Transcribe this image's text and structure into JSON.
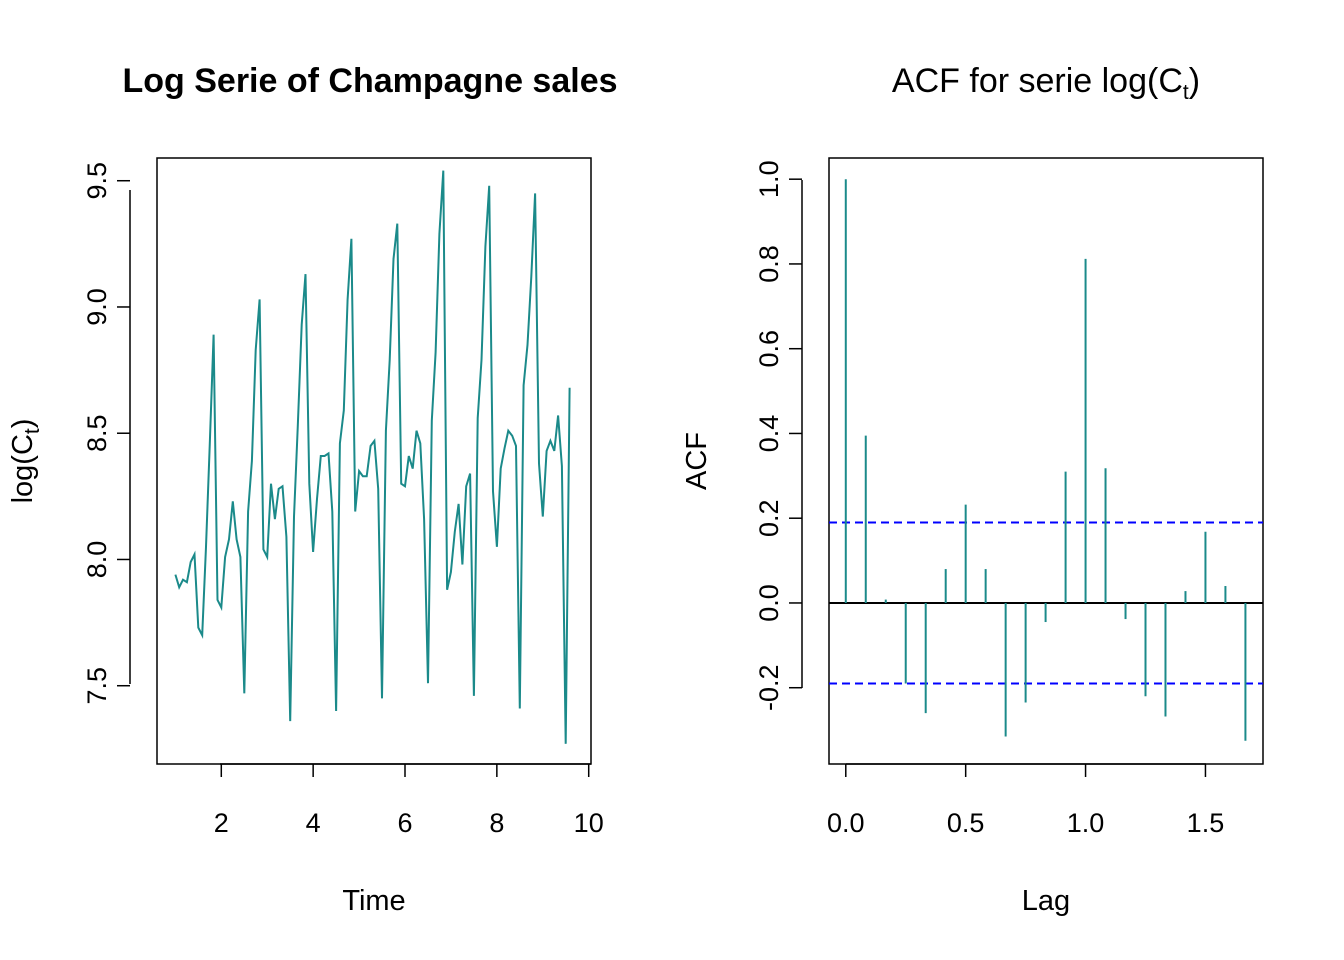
{
  "colors": {
    "series": "#1b8a8a",
    "ci": "#0000ff",
    "axis": "#000000",
    "background": "#ffffff"
  },
  "chart_data": [
    {
      "type": "line",
      "title": "Log Serie of Champagne sales",
      "xlabel": "Time",
      "ylabel": {
        "base": "log(C",
        "sub": "t",
        "close": ")"
      },
      "xlim": [
        0.6,
        10.05
      ],
      "ylim": [
        7.19,
        9.59
      ],
      "xticks": [
        2,
        4,
        6,
        8,
        10
      ],
      "yticks": [
        7.5,
        8.0,
        8.5,
        9.0,
        9.5
      ],
      "xtick_labels": [
        "2",
        "4",
        "6",
        "8",
        "10"
      ],
      "ytick_labels": [
        "7.5",
        "8.0",
        "8.5",
        "9.0",
        "9.5"
      ],
      "series": [
        {
          "x_start": 1.0,
          "x_step": 0.0833333,
          "y": [
            7.94,
            7.89,
            7.92,
            7.91,
            7.99,
            8.02,
            7.73,
            7.7,
            8.05,
            8.46,
            8.89,
            7.84,
            7.81,
            8.01,
            8.08,
            8.23,
            8.08,
            8.01,
            7.47,
            8.19,
            8.39,
            8.83,
            9.03,
            8.04,
            8.01,
            8.3,
            8.16,
            8.28,
            8.29,
            8.09,
            7.36,
            8.17,
            8.53,
            8.93,
            9.13,
            8.3,
            8.03,
            8.24,
            8.41,
            8.41,
            8.42,
            8.19,
            7.4,
            8.46,
            8.59,
            9.03,
            9.27,
            8.19,
            8.35,
            8.33,
            8.33,
            8.45,
            8.47,
            8.28,
            7.45,
            8.51,
            8.79,
            9.19,
            9.33,
            8.3,
            8.29,
            8.41,
            8.36,
            8.51,
            8.46,
            8.16,
            7.51,
            8.55,
            8.82,
            9.29,
            9.54,
            7.88,
            7.95,
            8.11,
            8.22,
            7.98,
            8.29,
            8.34,
            7.46,
            8.56,
            8.79,
            9.24,
            9.48,
            8.27,
            8.05,
            8.36,
            8.44,
            8.51,
            8.49,
            8.45,
            7.41,
            8.69,
            8.85,
            9.12,
            9.45,
            8.38,
            8.17,
            8.43,
            8.47,
            8.43,
            8.57,
            8.37,
            7.27,
            8.68
          ]
        }
      ]
    },
    {
      "type": "bar",
      "title": {
        "prefix": "ACF for serie log(C",
        "sub": "t",
        "close": ")"
      },
      "xlabel": "Lag",
      "ylabel": "ACF",
      "xlim": [
        -0.07,
        1.74
      ],
      "ylim": [
        -0.38,
        1.05
      ],
      "xticks": [
        0.0,
        0.5,
        1.0,
        1.5
      ],
      "yticks": [
        -0.2,
        0.0,
        0.2,
        0.4,
        0.6,
        0.8,
        1.0
      ],
      "xtick_labels": [
        "0.0",
        "0.5",
        "1.0",
        "1.5"
      ],
      "ytick_labels": [
        "-0.2",
        "0.0",
        "0.2",
        "0.4",
        "0.6",
        "0.8",
        "1.0"
      ],
      "lags": [
        0.0,
        0.0833,
        0.1667,
        0.25,
        0.3333,
        0.4167,
        0.5,
        0.5833,
        0.6667,
        0.75,
        0.8333,
        0.9167,
        1.0,
        1.0833,
        1.1667,
        1.25,
        1.3333,
        1.4167,
        1.5,
        1.5833,
        1.6667
      ],
      "values": [
        1.0,
        0.395,
        0.008,
        -0.19,
        -0.26,
        0.08,
        0.232,
        0.08,
        -0.315,
        -0.235,
        -0.045,
        0.31,
        0.812,
        0.318,
        -0.038,
        -0.22,
        -0.268,
        0.028,
        0.168,
        0.04,
        -0.325
      ],
      "ci": [
        0.19,
        -0.19
      ],
      "zero_line": 0
    }
  ]
}
